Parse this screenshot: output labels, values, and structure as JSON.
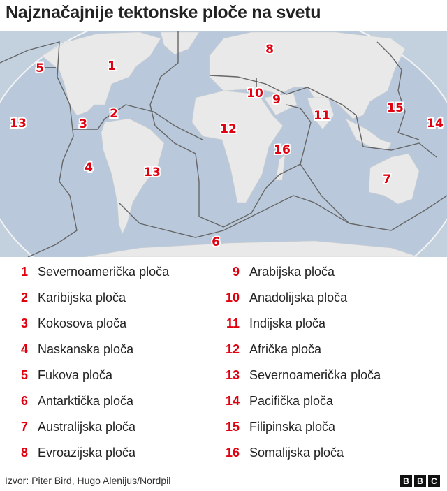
{
  "title": "Najznačajnije tektonske ploče na svetu",
  "colors": {
    "ocean": "#b9c9db",
    "land": "#e9e9e9",
    "plate_boundary": "#6b6b6b",
    "number": "#e0000f"
  },
  "map_labels": [
    "1",
    "2",
    "3",
    "4",
    "5",
    "6",
    "7",
    "8",
    "9",
    "10",
    "11",
    "12",
    "13",
    "13",
    "14",
    "15",
    "16"
  ],
  "legend": [
    {
      "num": "1",
      "label": "Severnoamerička ploča"
    },
    {
      "num": "2",
      "label": "Karibijska ploča"
    },
    {
      "num": "3",
      "label": "Kokosova ploča"
    },
    {
      "num": "4",
      "label": "Naskanska ploča"
    },
    {
      "num": "5",
      "label": "Fukova ploča"
    },
    {
      "num": "6",
      "label": "Antarktička ploča"
    },
    {
      "num": "7",
      "label": "Australijska ploča"
    },
    {
      "num": "8",
      "label": "Evroazijska ploča"
    },
    {
      "num": "9",
      "label": "Arabijska ploča"
    },
    {
      "num": "10",
      "label": "Anadolijska ploča"
    },
    {
      "num": "11",
      "label": "Indijska ploča"
    },
    {
      "num": "12",
      "label": "Afrička ploča"
    },
    {
      "num": "13",
      "label": "Severnoamerička ploča"
    },
    {
      "num": "14",
      "label": "Pacifička ploča"
    },
    {
      "num": "15",
      "label": "Filipinska ploča"
    },
    {
      "num": "16",
      "label": "Somalijska ploča"
    }
  ],
  "source": "Izvor: Piter Bird, Hugo Alenijus/Nordpil",
  "logo": [
    "B",
    "B",
    "C"
  ]
}
